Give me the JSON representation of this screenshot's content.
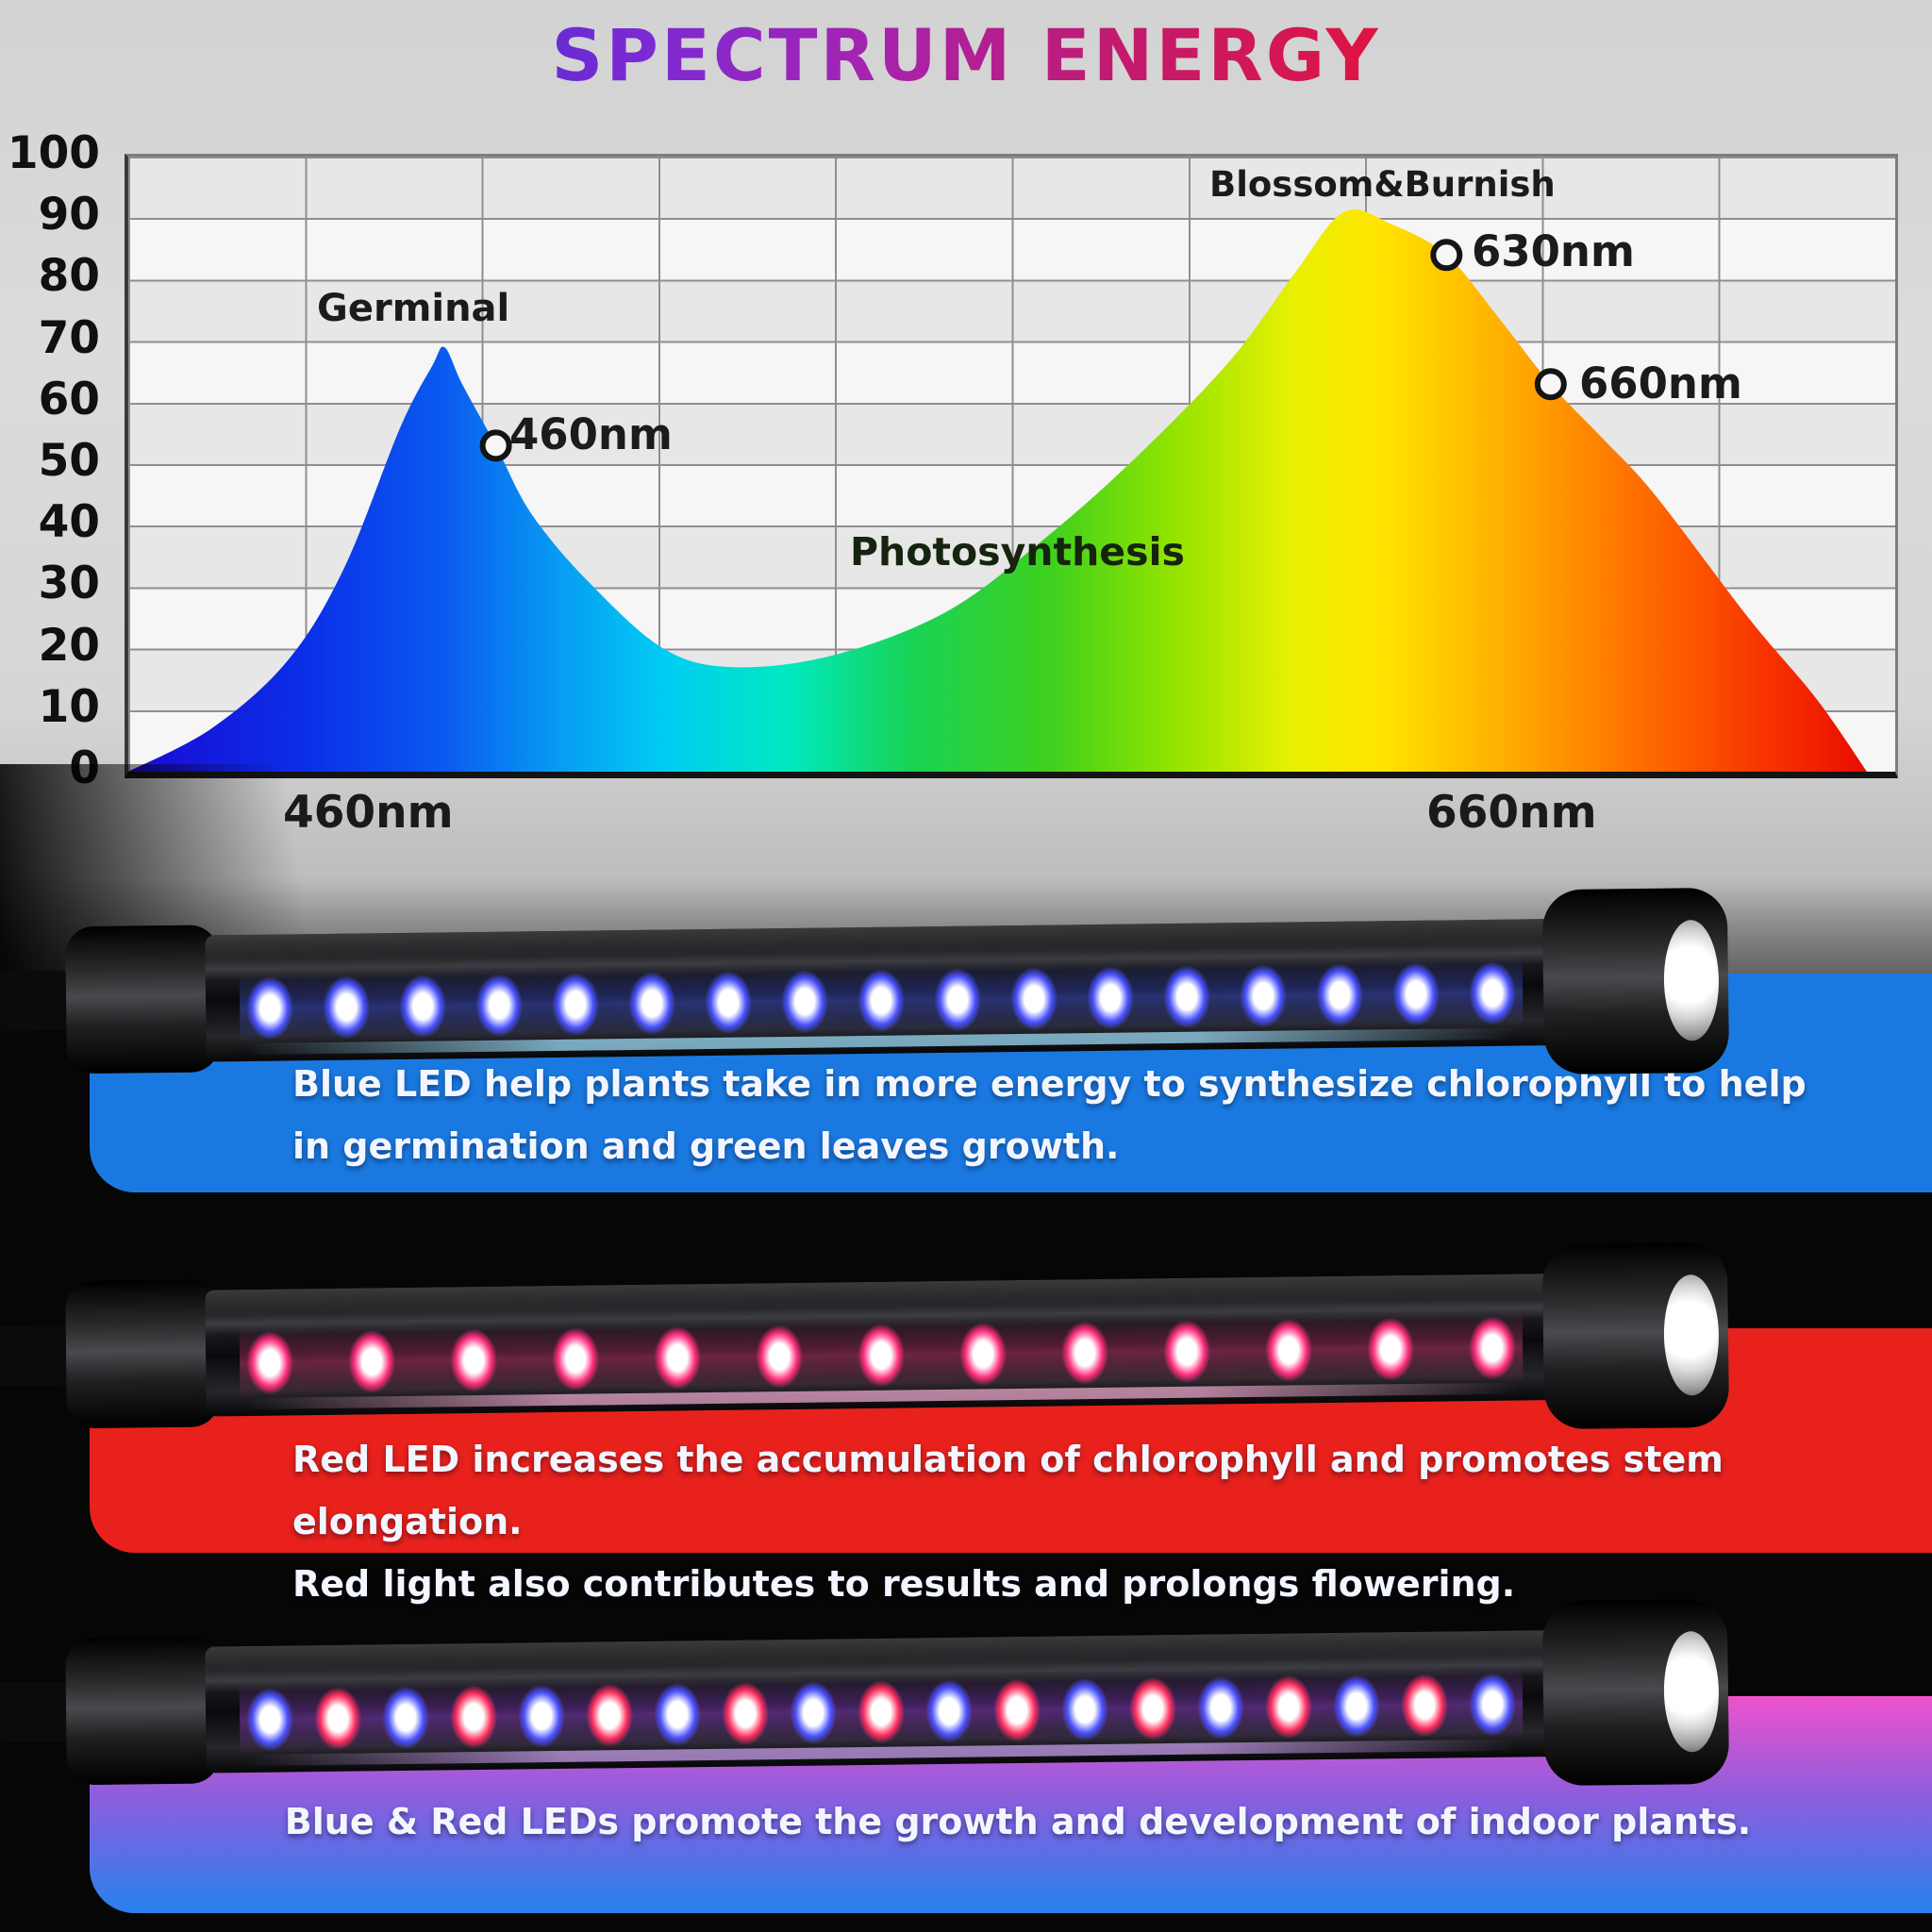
{
  "title": "SPECTRUM ENERGY",
  "chart_data": {
    "type": "area",
    "title": "SPECTRUM ENERGY",
    "ylim": [
      0,
      100
    ],
    "y_ticks": [
      100,
      90,
      80,
      70,
      60,
      50,
      40,
      30,
      20,
      10,
      0
    ],
    "x_axis_labels": [
      "460nm",
      "660nm"
    ],
    "grid": true,
    "fill": "rainbow spectrum gradient blue-to-red",
    "points": [
      [
        0,
        0
      ],
      [
        4.7,
        7
      ],
      [
        9,
        18
      ],
      [
        12.2,
        33
      ],
      [
        15.4,
        56
      ],
      [
        17.2,
        66
      ],
      [
        17.9,
        69
      ],
      [
        18.9,
        63
      ],
      [
        20.8,
        53
      ],
      [
        22.8,
        42
      ],
      [
        26,
        31
      ],
      [
        30.3,
        20
      ],
      [
        34.3,
        17
      ],
      [
        40,
        19
      ],
      [
        46.3,
        26
      ],
      [
        51.7,
        37.5
      ],
      [
        57,
        51
      ],
      [
        62.4,
        67
      ],
      [
        66,
        81
      ],
      [
        68.8,
        91
      ],
      [
        71.5,
        89
      ],
      [
        74.6,
        84
      ],
      [
        77.5,
        74
      ],
      [
        80.5,
        63
      ],
      [
        83.5,
        54
      ],
      [
        86.4,
        45
      ],
      [
        91.7,
        25
      ],
      [
        95.5,
        12
      ],
      [
        98.4,
        0
      ]
    ],
    "markers": [
      {
        "label": "460nm",
        "x_pct": 20.8,
        "value": 53
      },
      {
        "label": "630nm",
        "x_pct": 74.6,
        "value": 84
      },
      {
        "label": "660nm",
        "x_pct": 80.5,
        "value": 63
      }
    ],
    "peaks": [
      {
        "label": "Germinal",
        "x_pct": 17.9,
        "value": 69
      },
      {
        "label": "Blossom&Burnish",
        "x_pct": 68.8,
        "value": 91
      }
    ],
    "annotations": [
      "Germinal",
      "Photosynthesis",
      "Blossom&Burnish"
    ]
  },
  "annotations": {
    "germinal": "Germinal",
    "nm460": "460nm",
    "photosynthesis": "Photosynthesis",
    "blossom": "Blossom&Burnish",
    "nm630": "630nm",
    "nm660": "660nm"
  },
  "x_labels": {
    "left": "460nm",
    "right": "660nm"
  },
  "banners": {
    "blue": {
      "line1": "Blue LED help plants take in more energy to synthesize chlorophyll to help",
      "line2": "in germination and green leaves growth.",
      "color": "#1a79e0"
    },
    "red": {
      "line1": "Red LED increases the accumulation of chlorophyll and promotes stem elongation.",
      "line2": "Red light also contributes to results and prolongs flowering.",
      "color": "#e8211c"
    },
    "mixed": {
      "line1": "Blue & Red LEDs promote the growth and development of indoor plants.",
      "color_top": "#ee52cc",
      "color_bottom": "#2e7fec"
    }
  },
  "tubes": [
    {
      "name": "blue-led-tube",
      "led_count": 17,
      "led_colors": [
        "#4a52ff"
      ]
    },
    {
      "name": "red-led-tube",
      "led_count": 13,
      "led_colors": [
        "#ff2e7e"
      ]
    },
    {
      "name": "blue-red-led-tube",
      "led_count": 19,
      "led_colors": [
        "#4a52ff",
        "#ff2e5e"
      ]
    }
  ],
  "colors": {
    "hero_bg": "#d6d6d6",
    "dark_bg": "#060606",
    "title_gradient": [
      "#3d2fd0",
      "#7a2ad4",
      "#b11fa0",
      "#e01957",
      "#ea1f2f"
    ]
  }
}
